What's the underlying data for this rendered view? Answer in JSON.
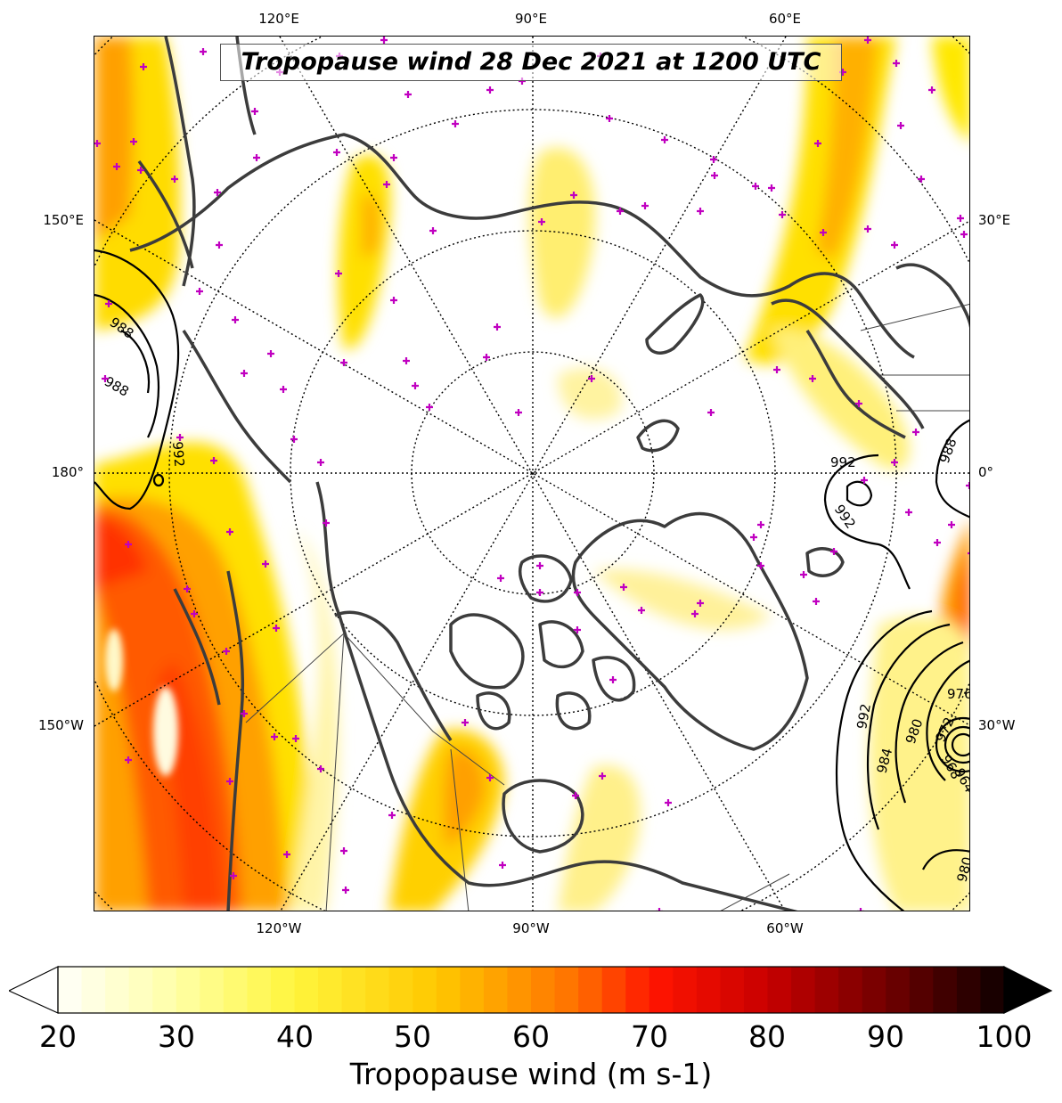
{
  "map": {
    "title": "Tropopause wind 28 Dec 2021 at 1200 UTC",
    "projection": "north-polar-stereographic",
    "lon_labels_top": [
      "120°E",
      "90°E",
      "60°E"
    ],
    "lon_labels_bottom": [
      "120°W",
      "90°W",
      "60°W"
    ],
    "lon_labels_left": [
      "150°E",
      "180°",
      "150°W"
    ],
    "lon_labels_right": [
      "30°E",
      "0°",
      "30°W"
    ],
    "contour_labels": [
      "988",
      "988",
      "992",
      "992",
      "992",
      "988",
      "992",
      "984",
      "980",
      "976",
      "972",
      "968",
      "964",
      "980"
    ],
    "colors": {
      "coastline": "#3c3c3c",
      "station_marker": "#c000c0",
      "contour": "#000000",
      "graticule": "#000000"
    }
  },
  "colorbar": {
    "label": "Tropopause wind (m s-1)",
    "ticks": [
      "20",
      "30",
      "40",
      "50",
      "60",
      "70",
      "80",
      "90",
      "100"
    ],
    "min": 20,
    "max": 100,
    "extend": "both",
    "colormap": "hot_r"
  }
}
